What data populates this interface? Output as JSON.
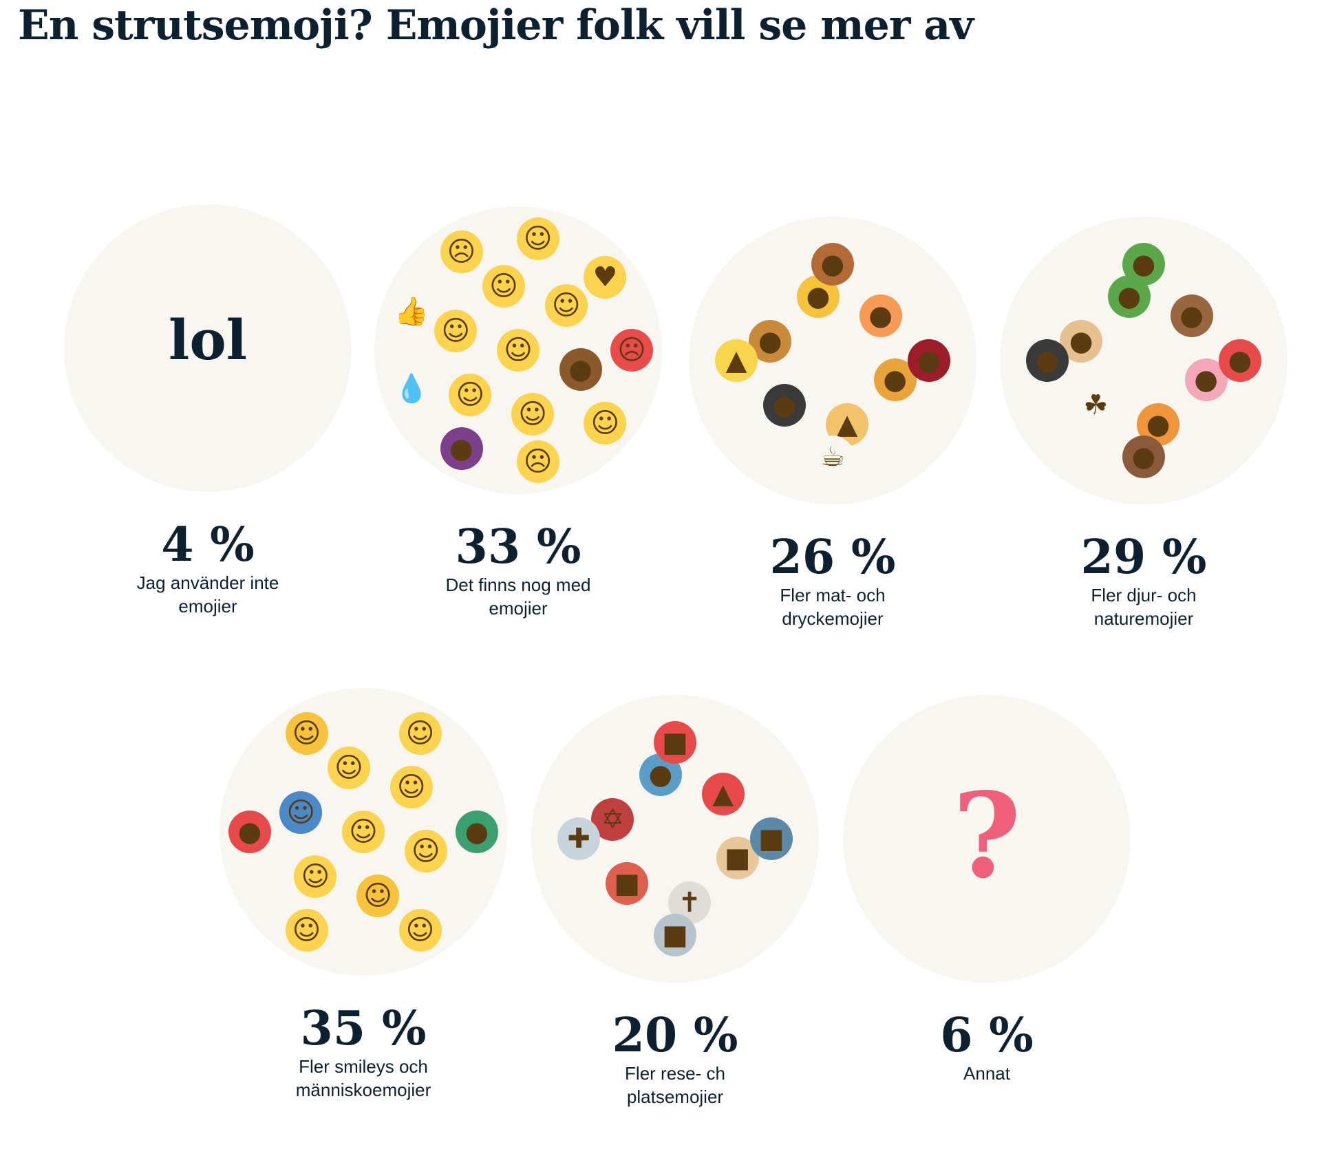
{
  "title": "En strutsemoji? Emojier folk vill se mer av",
  "colors": {
    "text": "#0d2030",
    "circle_bg": "#f8f6f0",
    "question_mark": "#f0607a"
  },
  "items": [
    {
      "percent": "4 %",
      "label_line1": "Jag använder inte",
      "label_line2": "emojier",
      "center_text": "lol",
      "emojis": []
    },
    {
      "percent": "33 %",
      "label_line1": "Det finns nog med",
      "label_line2": "emojier",
      "emojis": [
        {
          "name": "smiling-face",
          "char": "☺",
          "color": "#fcd34d"
        },
        {
          "name": "pile-of-poo",
          "char": "●",
          "color": "#8b5a2b"
        },
        {
          "name": "kissing-face",
          "char": "☺",
          "color": "#fcd34d"
        },
        {
          "name": "sunglasses-face",
          "char": "☺",
          "color": "#fcd34d"
        },
        {
          "name": "slightly-smiling-face",
          "char": "☺",
          "color": "#fcd34d"
        },
        {
          "name": "tears-of-joy-face",
          "char": "☺",
          "color": "#fcd34d"
        },
        {
          "name": "rolling-laughing-face",
          "char": "☺",
          "color": "#fcd34d"
        },
        {
          "name": "angry-face",
          "char": "☹",
          "color": "#e94b4b"
        },
        {
          "name": "nerd-face",
          "char": "☺",
          "color": "#fcd34d"
        },
        {
          "name": "frowning-face",
          "char": "☹",
          "color": "#fcd34d"
        },
        {
          "name": "eggplant",
          "char": "●",
          "color": "#7b3f8c"
        },
        {
          "name": "sweat-droplets",
          "char": "💧",
          "color": "#f8f6f0"
        },
        {
          "name": "thumbs-up",
          "char": "👍",
          "color": "#f8f6f0"
        },
        {
          "name": "screaming-face",
          "char": "☹",
          "color": "#fcd34d"
        },
        {
          "name": "grimacing-face",
          "char": "☺",
          "color": "#fcd34d"
        },
        {
          "name": "heart-eyes-face",
          "char": "♥",
          "color": "#fcd34d"
        }
      ]
    },
    {
      "percent": "26 %",
      "label_line1": "Fler mat- och",
      "label_line2": "dryckemojier",
      "emojis": [
        {
          "name": "pineapple",
          "char": "●",
          "color": "#e8a33a"
        },
        {
          "name": "pizza",
          "char": "▲",
          "color": "#f3c36b"
        },
        {
          "name": "pot-of-food",
          "char": "●",
          "color": "#3a3a3a"
        },
        {
          "name": "hamburger",
          "char": "●",
          "color": "#c98a3a"
        },
        {
          "name": "beer-mugs",
          "char": "●",
          "color": "#f6c33a"
        },
        {
          "name": "peach",
          "char": "●",
          "color": "#f79a55"
        },
        {
          "name": "wine-glass",
          "char": "●",
          "color": "#9c1c2a"
        },
        {
          "name": "hot-beverage",
          "char": "☕",
          "color": "#f8f6f0"
        },
        {
          "name": "cheese",
          "char": "▲",
          "color": "#f8d54a"
        },
        {
          "name": "poultry-leg",
          "char": "●",
          "color": "#b36a35"
        }
      ]
    },
    {
      "percent": "29 %",
      "label_line1": "Fler djur- och",
      "label_line2": "naturemojier",
      "emojis": [
        {
          "name": "pig-face",
          "char": "●",
          "color": "#f4a7b9"
        },
        {
          "name": "tiger-face",
          "char": "●",
          "color": "#f0953a"
        },
        {
          "name": "shamrock",
          "char": "☘",
          "color": "#f8f6f0"
        },
        {
          "name": "dog-face",
          "char": "●",
          "color": "#e6c08f"
        },
        {
          "name": "palm-tree",
          "char": "●",
          "color": "#5aa84a"
        },
        {
          "name": "bear-face",
          "char": "●",
          "color": "#9a6640"
        },
        {
          "name": "crab",
          "char": "●",
          "color": "#e84a4a"
        },
        {
          "name": "see-no-evil-monkey",
          "char": "●",
          "color": "#8a5a3a"
        },
        {
          "name": "cat-face",
          "char": "●",
          "color": "#3a3a3a"
        },
        {
          "name": "cactus",
          "char": "●",
          "color": "#5aa84a"
        }
      ]
    },
    {
      "percent": "35 %",
      "label_line1": "Fler smileys och",
      "label_line2": "människoemojier",
      "emojis": [
        {
          "name": "tears-of-joy-face",
          "char": "☺",
          "color": "#fcd34d"
        },
        {
          "name": "upside-down-face",
          "char": "☺",
          "color": "#fcd34d"
        },
        {
          "name": "woman",
          "char": "☺",
          "color": "#f6c33a"
        },
        {
          "name": "grinning-face",
          "char": "☺",
          "color": "#fcd34d"
        },
        {
          "name": "person-bowing",
          "char": "☺",
          "color": "#4a8ac8"
        },
        {
          "name": "slightly-smiling-face",
          "char": "☺",
          "color": "#fcd34d"
        },
        {
          "name": "winking-tongue-face",
          "char": "☺",
          "color": "#fcd34d"
        },
        {
          "name": "person-walking",
          "char": "●",
          "color": "#3aa070"
        },
        {
          "name": "grinning-face-big-eyes",
          "char": "☺",
          "color": "#fcd34d"
        },
        {
          "name": "winking-face",
          "char": "☺",
          "color": "#fcd34d"
        },
        {
          "name": "woman-dancing",
          "char": "●",
          "color": "#e84a4a"
        },
        {
          "name": "man",
          "char": "☺",
          "color": "#f6c33a"
        },
        {
          "name": "smiling-blush-face",
          "char": "☺",
          "color": "#fcd34d"
        }
      ]
    },
    {
      "percent": "20 %",
      "label_line1": "Fler rese- ch",
      "label_line2": "platsemojier",
      "emojis": [
        {
          "name": "school",
          "char": "■",
          "color": "#e8c89a"
        },
        {
          "name": "church",
          "char": "✝",
          "color": "#e0dcd6"
        },
        {
          "name": "japanese-castle",
          "char": "■",
          "color": "#e06050"
        },
        {
          "name": "synagogue",
          "char": "✡",
          "color": "#c04040"
        },
        {
          "name": "statue-of-liberty",
          "char": "●",
          "color": "#5a9ec8"
        },
        {
          "name": "tokyo-tower",
          "char": "▲",
          "color": "#e84a4a"
        },
        {
          "name": "shop",
          "char": "■",
          "color": "#5a8aa8"
        },
        {
          "name": "classical-building",
          "char": "■",
          "color": "#b8c4cc"
        },
        {
          "name": "hospital",
          "char": "✚",
          "color": "#c8d4dc"
        },
        {
          "name": "shinto-shrine",
          "char": "■",
          "color": "#e84a4a"
        }
      ]
    },
    {
      "percent": "6 %",
      "label_line1": "Annat",
      "label_line2": "",
      "center_text": "?",
      "emojis": []
    }
  ]
}
